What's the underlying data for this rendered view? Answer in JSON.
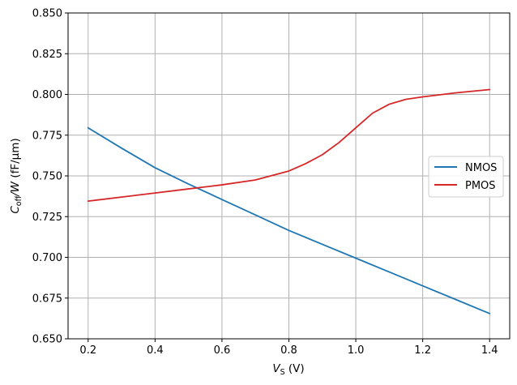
{
  "chart_data": {
    "type": "line",
    "xlabel": {
      "main": "V",
      "sub": "S",
      "rest": " (V)"
    },
    "ylabel": {
      "main": "C",
      "sub": "off",
      "rest": "/W (fF/μm)"
    },
    "xlim": [
      0.14,
      1.46
    ],
    "ylim": [
      0.65,
      0.85
    ],
    "xticks": [
      0.2,
      0.4,
      0.6,
      0.8,
      1.0,
      1.2,
      1.4
    ],
    "xtick_labels": [
      "0.2",
      "0.4",
      "0.6",
      "0.8",
      "1.0",
      "1.2",
      "1.4"
    ],
    "yticks": [
      0.65,
      0.675,
      0.7,
      0.725,
      0.75,
      0.775,
      0.8,
      0.825,
      0.85
    ],
    "ytick_labels": [
      "0.650",
      "0.675",
      "0.700",
      "0.725",
      "0.750",
      "0.775",
      "0.800",
      "0.825",
      "0.850"
    ],
    "grid": true,
    "legend_position": "center-right",
    "series": [
      {
        "name": "NMOS",
        "color": "#1f77b4",
        "x": [
          0.2,
          0.3,
          0.4,
          0.5,
          0.6,
          0.7,
          0.8,
          0.9,
          1.0,
          1.1,
          1.2,
          1.3,
          1.4
        ],
        "y": [
          0.7795,
          0.767,
          0.755,
          0.745,
          0.7355,
          0.726,
          0.7165,
          0.708,
          0.6995,
          0.691,
          0.6825,
          0.674,
          0.6655
        ]
      },
      {
        "name": "PMOS",
        "color": "#d62728",
        "x": [
          0.2,
          0.3,
          0.4,
          0.5,
          0.6,
          0.7,
          0.8,
          0.85,
          0.9,
          0.95,
          1.0,
          1.05,
          1.1,
          1.15,
          1.2,
          1.3,
          1.4
        ],
        "y": [
          0.7345,
          0.737,
          0.7395,
          0.742,
          0.7445,
          0.7475,
          0.753,
          0.7575,
          0.763,
          0.7705,
          0.7795,
          0.7885,
          0.794,
          0.797,
          0.7985,
          0.801,
          0.803
        ]
      }
    ]
  }
}
